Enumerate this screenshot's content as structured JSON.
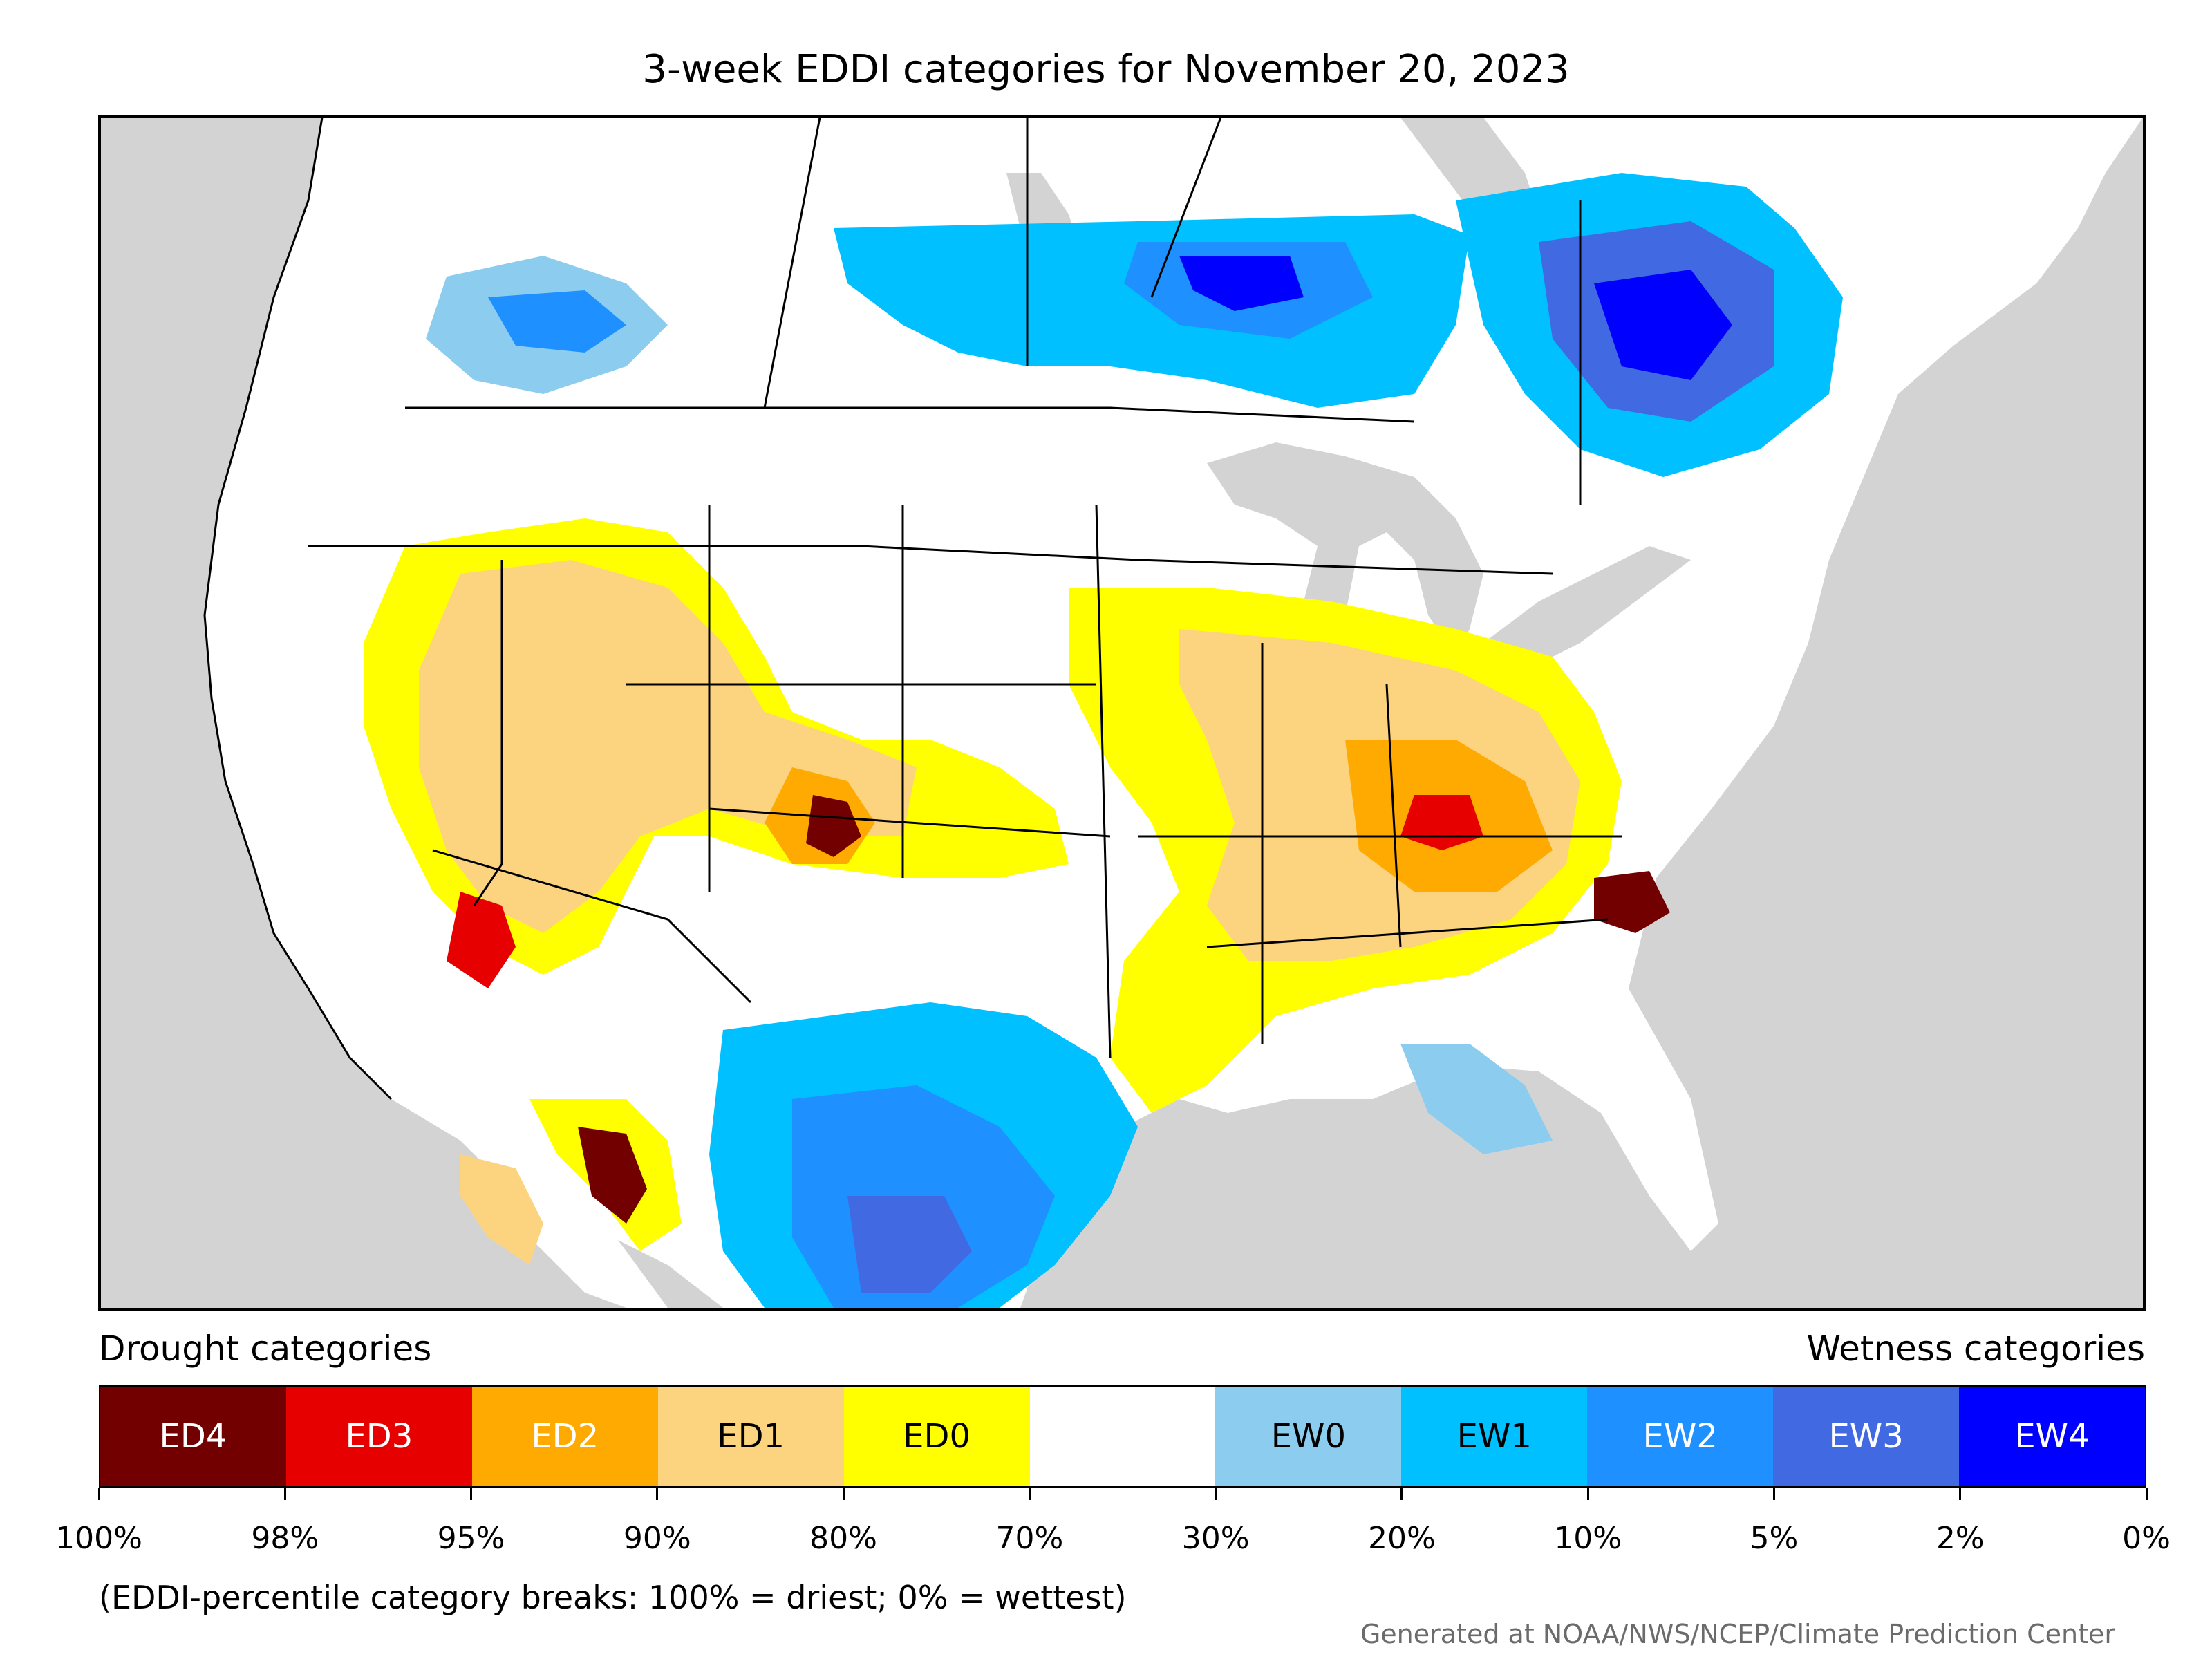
{
  "title": "3-week EDDI categories for November 20, 2023",
  "headings": {
    "drought": "Drought categories",
    "wetness": "Wetness categories"
  },
  "categories": [
    {
      "label": "ED4",
      "color": "#730000",
      "text_color": "#ffffff"
    },
    {
      "label": "ED3",
      "color": "#e60000",
      "text_color": "#ffffff"
    },
    {
      "label": "ED2",
      "color": "#ffaa00",
      "text_color": "#ffffff"
    },
    {
      "label": "ED1",
      "color": "#fcd37f",
      "text_color": "#000000"
    },
    {
      "label": "ED0",
      "color": "#ffff00",
      "text_color": "#000000"
    },
    {
      "label": "",
      "color": "#ffffff",
      "text_color": "#000000"
    },
    {
      "label": "EW0",
      "color": "#8ccdef",
      "text_color": "#000000"
    },
    {
      "label": "EW1",
      "color": "#00c0ff",
      "text_color": "#000000"
    },
    {
      "label": "EW2",
      "color": "#1e90ff",
      "text_color": "#ffffff"
    },
    {
      "label": "EW3",
      "color": "#4169e1",
      "text_color": "#ffffff"
    },
    {
      "label": "EW4",
      "color": "#0000ff",
      "text_color": "#ffffff"
    }
  ],
  "ticks": [
    "100%",
    "98%",
    "95%",
    "90%",
    "80%",
    "70%",
    "30%",
    "20%",
    "10%",
    "5%",
    "2%",
    "0%"
  ],
  "note": "(EDDI-percentile category breaks: 100% = driest; 0% = wettest)",
  "credit": "Generated at NOAA/NWS/NCEP/Climate Prediction Center",
  "map": {
    "background_color": "#d3d3d3",
    "land_color": "#ffffff",
    "border_color": "#000000"
  }
}
